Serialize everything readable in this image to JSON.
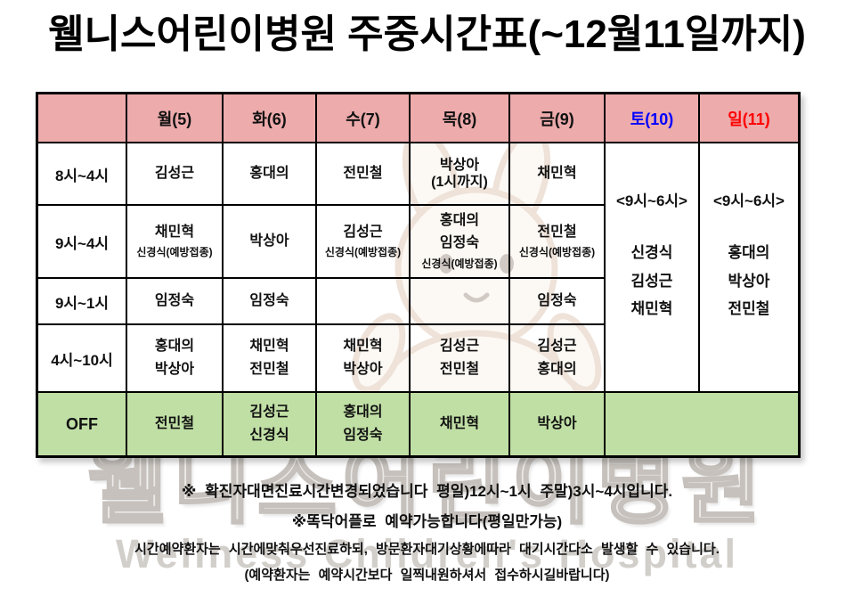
{
  "title": "웰니스어린이병원  주중시간표(~12월11일까지)",
  "watermark": {
    "korean": "웰니스어린이병원",
    "english": "Wellness Children's Hospital"
  },
  "colors": {
    "header_bg": "#edabac",
    "off_bg": "#c0dfa5",
    "saturday_text": "#0000ff",
    "sunday_text": "#ff0000"
  },
  "table": {
    "columns": [
      {
        "label": ""
      },
      {
        "label": "월(5)"
      },
      {
        "label": "화(6)"
      },
      {
        "label": "수(7)"
      },
      {
        "label": "목(8)"
      },
      {
        "label": "금(9)"
      },
      {
        "label": "토(10)",
        "color": "#0000ff"
      },
      {
        "label": "일(11)",
        "color": "#ff0000"
      }
    ],
    "rows": [
      {
        "time": "8시~4시",
        "cells": [
          [
            {
              "t": "김성근"
            }
          ],
          [
            {
              "t": "홍대의"
            }
          ],
          [
            {
              "t": "전민철"
            }
          ],
          [
            {
              "t": "박상아"
            },
            {
              "t": "(1시까지)",
              "tight": true
            }
          ],
          [
            {
              "t": "채민혁"
            }
          ]
        ]
      },
      {
        "time": "9시~4시",
        "cells": [
          [
            {
              "t": "채민혁"
            },
            {
              "t": "신경식(예방접종)",
              "small": true
            }
          ],
          [
            {
              "t": "박상아"
            }
          ],
          [
            {
              "t": "김성근"
            },
            {
              "t": "신경식(예방접종)",
              "small": true
            }
          ],
          [
            {
              "t": "홍대의"
            },
            {
              "t": "임정숙"
            },
            {
              "t": "신경식(예방접종)",
              "small": true
            }
          ],
          [
            {
              "t": "전민철"
            },
            {
              "t": "신경식(예방접종)",
              "small": true
            }
          ]
        ]
      },
      {
        "time": "9시~1시",
        "cells": [
          [
            {
              "t": "임정숙"
            }
          ],
          [
            {
              "t": "임정숙"
            }
          ],
          [],
          [],
          [
            {
              "t": "임정숙"
            }
          ]
        ]
      },
      {
        "time": "4시~10시",
        "cells": [
          [
            {
              "t": "홍대의"
            },
            {
              "t": "박상아"
            }
          ],
          [
            {
              "t": "채민혁"
            },
            {
              "t": "전민철"
            }
          ],
          [
            {
              "t": "채민혁"
            },
            {
              "t": "박상아"
            }
          ],
          [
            {
              "t": "김성근"
            },
            {
              "t": "전민철"
            }
          ],
          [
            {
              "t": "김성근"
            },
            {
              "t": "홍대의"
            }
          ]
        ]
      }
    ],
    "weekend": {
      "sat": {
        "hours": "<9시~6시>",
        "doctors": [
          "신경식",
          "김성근",
          "채민혁"
        ]
      },
      "sun": {
        "hours": "<9시~6시>",
        "doctors": [
          "홍대의",
          "박상아",
          "전민철"
        ]
      }
    },
    "off": {
      "label": "OFF",
      "cells": [
        [
          {
            "t": "전민철"
          }
        ],
        [
          {
            "t": "김성근"
          },
          {
            "t": "신경식"
          }
        ],
        [
          {
            "t": "홍대의"
          },
          {
            "t": "임정숙"
          }
        ],
        [
          {
            "t": "채민혁"
          }
        ],
        [
          {
            "t": "박상아"
          }
        ]
      ]
    }
  },
  "notes": [
    "※ 확진자대면진료시간변경되었습니다  평일)12시~1시  주말)3시~4시입니다.",
    "※똑닥어플로  예약가능합니다(평일만가능)",
    "시간예약환자는  시간에맞춰우선진료하되,  방문환자대기상황에따라  대기시간다소  발생할  수  있습니다.",
    "(예약환자는  예약시간보다  일찍내원하셔서  접수하시길바랍니다)"
  ]
}
